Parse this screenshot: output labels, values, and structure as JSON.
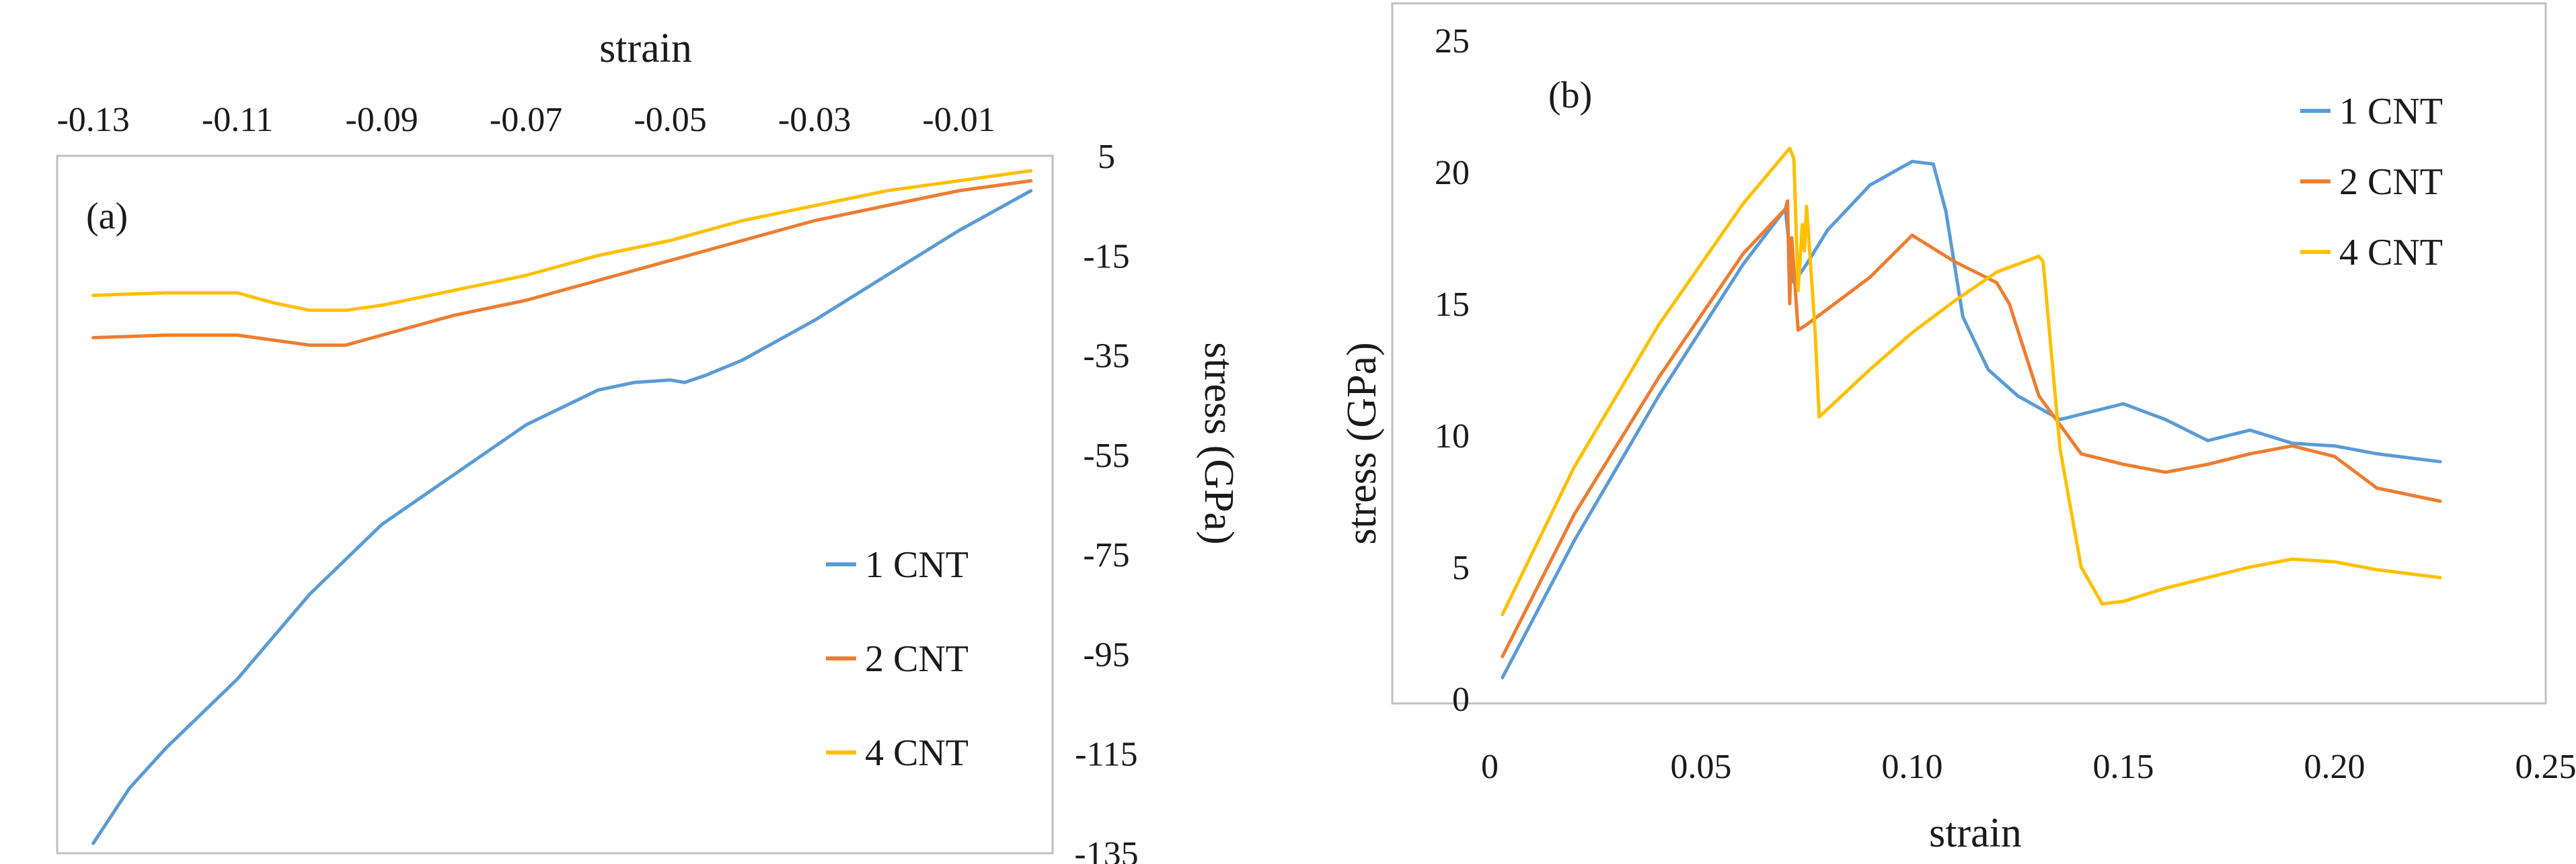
{
  "colors": {
    "series_1": "#5b9bd5",
    "series_2": "#ed7d31",
    "series_4": "#ffc000",
    "axis": "#bfbfbf",
    "text": "#1a1a1a"
  },
  "chart_data": [
    {
      "panel": "(a)",
      "type": "line",
      "xlabel": "strain",
      "ylabel": "stress (GPa)",
      "xlim": [
        -0.135,
        0.003
      ],
      "ylim": [
        -135,
        5
      ],
      "x_ticks": [
        -0.13,
        -0.11,
        -0.09,
        -0.07,
        -0.05,
        -0.03,
        -0.01
      ],
      "x_tick_labels": [
        "-0.13",
        "-0.11",
        "-0.09",
        "-0.07",
        "-0.05",
        "-0.03",
        "-0.01"
      ],
      "y_ticks": [
        5,
        -15,
        -35,
        -55,
        -75,
        -95,
        -115,
        -135
      ],
      "y_tick_labels": [
        "5",
        "-15",
        "-35",
        "-55",
        "-75",
        "-95",
        "-115",
        "-135"
      ],
      "x_axis_position": "top",
      "y_axis_position": "right",
      "grid": false,
      "legend_position": "bottom-right",
      "series": [
        {
          "name": "1 CNT",
          "x": [
            -0.13,
            -0.125,
            -0.12,
            -0.11,
            -0.1,
            -0.09,
            -0.08,
            -0.07,
            -0.06,
            -0.055,
            -0.05,
            -0.048,
            -0.045,
            -0.04,
            -0.03,
            -0.02,
            -0.01,
            0.0
          ],
          "y": [
            -133,
            -122,
            -114,
            -100,
            -83,
            -69,
            -59,
            -49,
            -42,
            -40.5,
            -40,
            -40.5,
            -39,
            -36,
            -28,
            -19,
            -10,
            -2
          ]
        },
        {
          "name": "2 CNT",
          "x": [
            -0.13,
            -0.12,
            -0.11,
            -0.105,
            -0.1,
            -0.095,
            -0.09,
            -0.08,
            -0.07,
            -0.06,
            -0.05,
            -0.04,
            -0.03,
            -0.02,
            -0.01,
            0.0
          ],
          "y": [
            -31.5,
            -31,
            -31,
            -32,
            -33,
            -33,
            -31,
            -27,
            -24,
            -20,
            -16,
            -12,
            -8,
            -5,
            -2,
            0
          ]
        },
        {
          "name": "4 CNT",
          "x": [
            -0.13,
            -0.12,
            -0.11,
            -0.105,
            -0.1,
            -0.095,
            -0.09,
            -0.08,
            -0.07,
            -0.06,
            -0.05,
            -0.04,
            -0.03,
            -0.02,
            -0.01,
            0.0
          ],
          "y": [
            -23,
            -22.5,
            -22.5,
            -24.5,
            -26,
            -26,
            -25,
            -22,
            -19,
            -15,
            -12,
            -8,
            -5,
            -2,
            0,
            2
          ]
        }
      ]
    },
    {
      "panel": "(b)",
      "type": "line",
      "xlabel": "strain",
      "ylabel": "stress (GPa)",
      "xlim": [
        0,
        0.25
      ],
      "ylim": [
        0,
        25
      ],
      "x_ticks": [
        0,
        0.05,
        0.1,
        0.15,
        0.2,
        0.25
      ],
      "x_tick_labels": [
        "0",
        "0.05",
        "0.10",
        "0.15",
        "0.20",
        "0.25"
      ],
      "y_ticks": [
        0,
        5,
        10,
        15,
        20,
        25
      ],
      "y_tick_labels": [
        "0",
        "5",
        "10",
        "15",
        "20",
        "25"
      ],
      "x_axis_position": "bottom",
      "y_axis_position": "left",
      "grid": false,
      "legend_position": "top-right",
      "series": [
        {
          "name": "1 CNT",
          "x": [
            0.003,
            0.02,
            0.04,
            0.06,
            0.07,
            0.071,
            0.072,
            0.075,
            0.08,
            0.09,
            0.1,
            0.105,
            0.108,
            0.112,
            0.118,
            0.125,
            0.135,
            0.14,
            0.15,
            0.16,
            0.17,
            0.18,
            0.19,
            0.2,
            0.21,
            0.22,
            0.225
          ],
          "y": [
            0.8,
            6,
            11.5,
            16.5,
            18.6,
            17,
            15.8,
            16.5,
            17.8,
            19.5,
            20.4,
            20.3,
            18.5,
            14.5,
            12.5,
            11.5,
            10.6,
            10.8,
            11.2,
            10.6,
            9.8,
            10.2,
            9.7,
            9.6,
            9.3,
            9.1,
            9
          ]
        },
        {
          "name": "2 CNT",
          "x": [
            0.003,
            0.02,
            0.04,
            0.06,
            0.07,
            0.0705,
            0.071,
            0.0715,
            0.073,
            0.075,
            0.09,
            0.1,
            0.11,
            0.12,
            0.123,
            0.13,
            0.14,
            0.15,
            0.16,
            0.17,
            0.18,
            0.19,
            0.2,
            0.21,
            0.225
          ],
          "y": [
            1.6,
            7,
            12.2,
            16.9,
            18.6,
            18.9,
            15,
            17.5,
            14,
            14.2,
            16,
            17.6,
            16.6,
            15.8,
            15,
            11.5,
            9.3,
            8.9,
            8.6,
            8.9,
            9.3,
            9.6,
            9.2,
            8,
            7.5
          ]
        },
        {
          "name": "4 CNT",
          "x": [
            0.003,
            0.02,
            0.04,
            0.06,
            0.071,
            0.072,
            0.073,
            0.074,
            0.0745,
            0.075,
            0.077,
            0.078,
            0.08,
            0.09,
            0.1,
            0.11,
            0.12,
            0.13,
            0.131,
            0.135,
            0.14,
            0.145,
            0.15,
            0.16,
            0.17,
            0.18,
            0.19,
            0.2,
            0.21,
            0.225
          ],
          "y": [
            3.2,
            8.8,
            14.2,
            18.8,
            20.9,
            20.5,
            15.5,
            18,
            17,
            18.7,
            14,
            10.7,
            11,
            12.5,
            13.9,
            15.1,
            16.2,
            16.8,
            16.6,
            9.5,
            5,
            3.6,
            3.7,
            4.2,
            4.6,
            5,
            5.3,
            5.2,
            4.9,
            4.6
          ]
        }
      ]
    }
  ]
}
